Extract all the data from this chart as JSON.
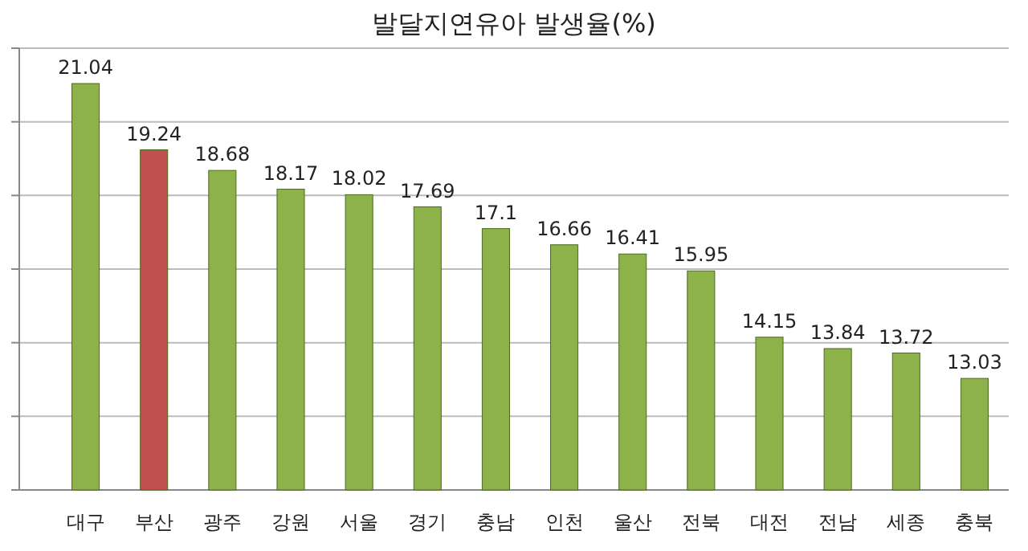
{
  "chart_data": {
    "type": "bar",
    "title": "발달지연유아 발생율(%)",
    "categories": [
      "대구",
      "부산",
      "광주",
      "강원",
      "서울",
      "경기",
      "충남",
      "인천",
      "울산",
      "전북",
      "대전",
      "전남",
      "세종",
      "충북"
    ],
    "values": [
      21.04,
      19.24,
      18.68,
      18.17,
      18.02,
      17.69,
      17.1,
      16.66,
      16.41,
      15.95,
      14.15,
      13.84,
      13.72,
      13.03
    ],
    "colors": [
      "#8db24a",
      "#c0504d",
      "#8db24a",
      "#8db24a",
      "#8db24a",
      "#8db24a",
      "#8db24a",
      "#8db24a",
      "#8db24a",
      "#8db24a",
      "#8db24a",
      "#8db24a",
      "#8db24a",
      "#8db24a"
    ],
    "ylim": [
      10,
      22
    ],
    "yticks": [
      {
        "value": 10,
        "label": null
      },
      {
        "value": 12,
        "label": null
      },
      {
        "value": 14,
        "label": null
      },
      {
        "value": 16,
        "label": null
      },
      {
        "value": 18,
        "label": null
      },
      {
        "value": 20,
        "label": null
      },
      {
        "value": 22,
        "label": null
      }
    ],
    "grid": true,
    "data_labels": true,
    "tick_labels": "x"
  }
}
